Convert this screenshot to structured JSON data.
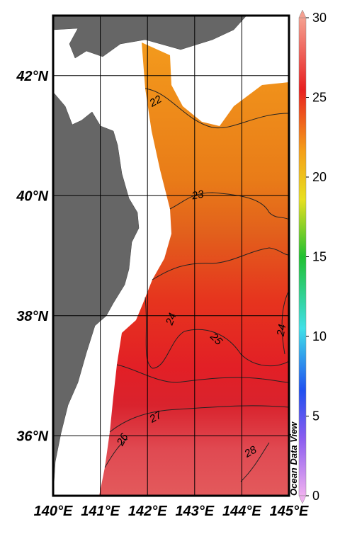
{
  "map": {
    "xlim": [
      140,
      145
    ],
    "ylim": [
      35,
      43
    ],
    "xticks": [
      {
        "value": 140,
        "label": "140°E"
      },
      {
        "value": 141,
        "label": "141°E"
      },
      {
        "value": 142,
        "label": "142°E"
      },
      {
        "value": 143,
        "label": "143°E"
      },
      {
        "value": 144,
        "label": "144°E"
      },
      {
        "value": 145,
        "label": "145°E"
      }
    ],
    "yticks": [
      {
        "value": 36,
        "label": "36°N"
      },
      {
        "value": 38,
        "label": "38°N"
      },
      {
        "value": 40,
        "label": "40°N"
      },
      {
        "value": 42,
        "label": "42°N"
      }
    ]
  },
  "colorbar": {
    "range": [
      0,
      30
    ],
    "ticks": [
      0,
      5,
      10,
      15,
      20,
      25,
      30
    ]
  },
  "contour_labels": [
    22,
    23,
    24,
    25,
    24,
    26,
    27,
    28
  ],
  "watermark": "Ocean Data View"
}
